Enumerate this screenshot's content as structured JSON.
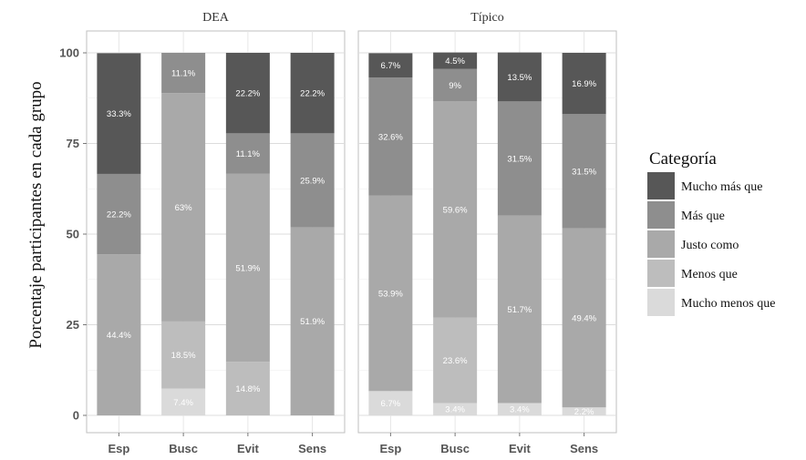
{
  "chart_data": {
    "type": "bar",
    "stacked": true,
    "ylabel": "Porcentaje participantes en cada grupo",
    "ylim": [
      0,
      100
    ],
    "yticks": [
      "0",
      "25",
      "50",
      "75",
      "100"
    ],
    "grid": true,
    "legend": {
      "title": "Categoría",
      "placement": "right",
      "entries": [
        {
          "name": "Mucho más que",
          "color": "#575757"
        },
        {
          "name": "Más que",
          "color": "#8e8e8e"
        },
        {
          "name": "Justo como",
          "color": "#a9a9a9"
        },
        {
          "name": "Menos que",
          "color": "#bdbdbd"
        },
        {
          "name": "Mucho menos que",
          "color": "#dadada"
        }
      ]
    },
    "panels": [
      {
        "title": "DEA",
        "categories": [
          "Esp",
          "Busc",
          "Evit",
          "Sens"
        ],
        "series": [
          {
            "name": "Mucho menos que",
            "values": [
              0,
              7.4,
              0,
              0
            ],
            "labels": [
              "",
              "7.4%",
              "",
              ""
            ]
          },
          {
            "name": "Menos que",
            "values": [
              0,
              18.5,
              14.8,
              0
            ],
            "labels": [
              "",
              "18.5%",
              "14.8%",
              ""
            ]
          },
          {
            "name": "Justo como",
            "values": [
              44.4,
              63,
              51.9,
              51.9
            ],
            "labels": [
              "44.4%",
              "63%",
              "51.9%",
              "51.9%"
            ]
          },
          {
            "name": "Más que",
            "values": [
              22.2,
              11.1,
              11.1,
              25.9
            ],
            "labels": [
              "22.2%",
              "11.1%",
              "11.1%",
              "25.9%"
            ]
          },
          {
            "name": "Mucho más que",
            "values": [
              33.3,
              0,
              22.2,
              22.2
            ],
            "labels": [
              "33.3%",
              "",
              "22.2%",
              "22.2%"
            ]
          }
        ]
      },
      {
        "title": "Típico",
        "categories": [
          "Esp",
          "Busc",
          "Evit",
          "Sens"
        ],
        "series": [
          {
            "name": "Mucho menos que",
            "values": [
              6.7,
              3.4,
              3.4,
              2.2
            ],
            "labels": [
              "6.7%",
              "3.4%",
              "3.4%",
              "2.2%"
            ]
          },
          {
            "name": "Menos que",
            "values": [
              0,
              23.6,
              0,
              0
            ],
            "labels": [
              "",
              "23.6%",
              "",
              ""
            ]
          },
          {
            "name": "Justo como",
            "values": [
              53.9,
              59.6,
              51.7,
              49.4
            ],
            "labels": [
              "53.9%",
              "59.6%",
              "51.7%",
              "49.4%"
            ]
          },
          {
            "name": "Más que",
            "values": [
              32.6,
              9,
              31.5,
              31.5
            ],
            "labels": [
              "32.6%",
              "9%",
              "31.5%",
              "31.5%"
            ]
          },
          {
            "name": "Mucho más que",
            "values": [
              6.7,
              4.5,
              13.5,
              16.9
            ],
            "labels": [
              "6.7%",
              "4.5%",
              "13.5%",
              "16.9%"
            ]
          }
        ]
      }
    ]
  }
}
